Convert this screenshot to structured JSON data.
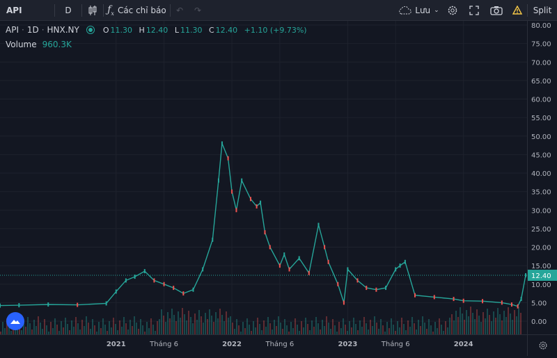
{
  "toolbar": {
    "symbol": "API",
    "interval": "D",
    "indicators_label": "Các chỉ báo",
    "save_label": "Lưu",
    "split_label": "Split"
  },
  "legend": {
    "symbol": "API",
    "interval": "1D",
    "exchange": "HNX.NY",
    "open_label": "O",
    "open": "11.30",
    "high_label": "H",
    "high": "12.40",
    "low_label": "L",
    "low": "11.30",
    "close_label": "C",
    "close": "12.40",
    "change": "+1.10 (+9.73%)",
    "volume_label": "Volume",
    "volume_value": "960.3K"
  },
  "colors": {
    "up": "#26a69a",
    "down": "#ef5350",
    "last_price": "#26a69a",
    "background": "#131722"
  },
  "chart_data": {
    "type": "line",
    "title": "",
    "series": [
      {
        "name": "API",
        "x": [
          "2020-01-01",
          "2020-03-01",
          "2020-06-01",
          "2020-09-01",
          "2020-12-01",
          "2021-01-01",
          "2021-02-01",
          "2021-03-01",
          "2021-04-01",
          "2021-05-01",
          "2021-06-01",
          "2021-07-01",
          "2021-08-01",
          "2021-09-01",
          "2021-10-01",
          "2021-11-01",
          "2021-11-20",
          "2021-12-01",
          "2021-12-20",
          "2022-01-01",
          "2022-01-15",
          "2022-02-01",
          "2022-03-01",
          "2022-03-20",
          "2022-04-01",
          "2022-04-15",
          "2022-05-01",
          "2022-06-01",
          "2022-06-15",
          "2022-07-01",
          "2022-08-01",
          "2022-09-01",
          "2022-10-01",
          "2022-10-20",
          "2022-11-01",
          "2022-12-01",
          "2022-12-20",
          "2023-01-01",
          "2023-02-01",
          "2023-03-01",
          "2023-04-01",
          "2023-05-01",
          "2023-06-01",
          "2023-06-15",
          "2023-07-01",
          "2023-08-01",
          "2023-10-01",
          "2023-12-01",
          "2024-01-01",
          "2024-03-01",
          "2024-05-01",
          "2024-06-01",
          "2024-06-20",
          "2024-07-01",
          "2024-07-15"
        ],
        "values": [
          4.2,
          4.3,
          4.5,
          4.4,
          4.8,
          8,
          11,
          12,
          13.5,
          11,
          10,
          9,
          7.5,
          8.5,
          14,
          22,
          38,
          48,
          44,
          35,
          30,
          38,
          33,
          31,
          32,
          24,
          20,
          15,
          18,
          14,
          17,
          13,
          26,
          20,
          16,
          10,
          5,
          14,
          11,
          9,
          8.5,
          9,
          14,
          15,
          16,
          7,
          6.5,
          6,
          5.5,
          5.4,
          5,
          4.5,
          4,
          6,
          12.4
        ]
      }
    ],
    "ylim": [
      0,
      80
    ],
    "yticks": [
      "80.00",
      "75.00",
      "70.00",
      "65.00",
      "60.00",
      "55.00",
      "50.00",
      "45.00",
      "40.00",
      "35.00",
      "30.00",
      "25.00",
      "20.00",
      "15.00",
      "10.00",
      "5.00",
      "0.00"
    ],
    "xticks": [
      "2021",
      "Tháng 6",
      "2022",
      "Tháng 6",
      "2023",
      "Tháng 6",
      "2024"
    ],
    "last_price": "12.40",
    "grid": true,
    "legend": "top-left"
  }
}
